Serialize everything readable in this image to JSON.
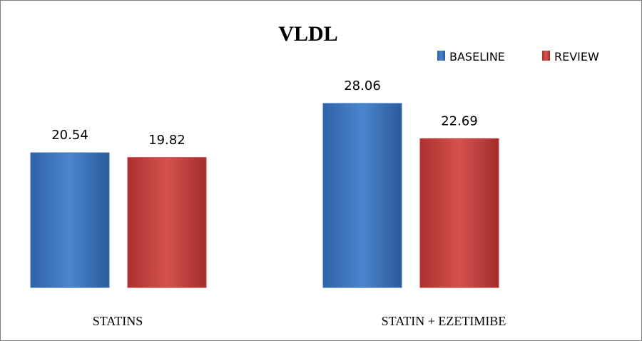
{
  "chart_data": {
    "type": "bar",
    "title": "VLDL",
    "categories": [
      "STATINS",
      "STATIN + EZETIMIBE"
    ],
    "series": [
      {
        "name": "BASELINE",
        "values": [
          20.54,
          28.06
        ],
        "labels": [
          "20.54",
          "28.06"
        ],
        "color": "#3b73b9"
      },
      {
        "name": "REVIEW",
        "values": [
          19.82,
          22.69
        ],
        "labels": [
          "19.82",
          "22.69"
        ],
        "color": "#c23b39"
      }
    ],
    "xlabel": "",
    "ylabel": "",
    "grid": false,
    "legend_position": "top-right",
    "value_axis_visible": false,
    "ylim": [
      0,
      32
    ]
  }
}
